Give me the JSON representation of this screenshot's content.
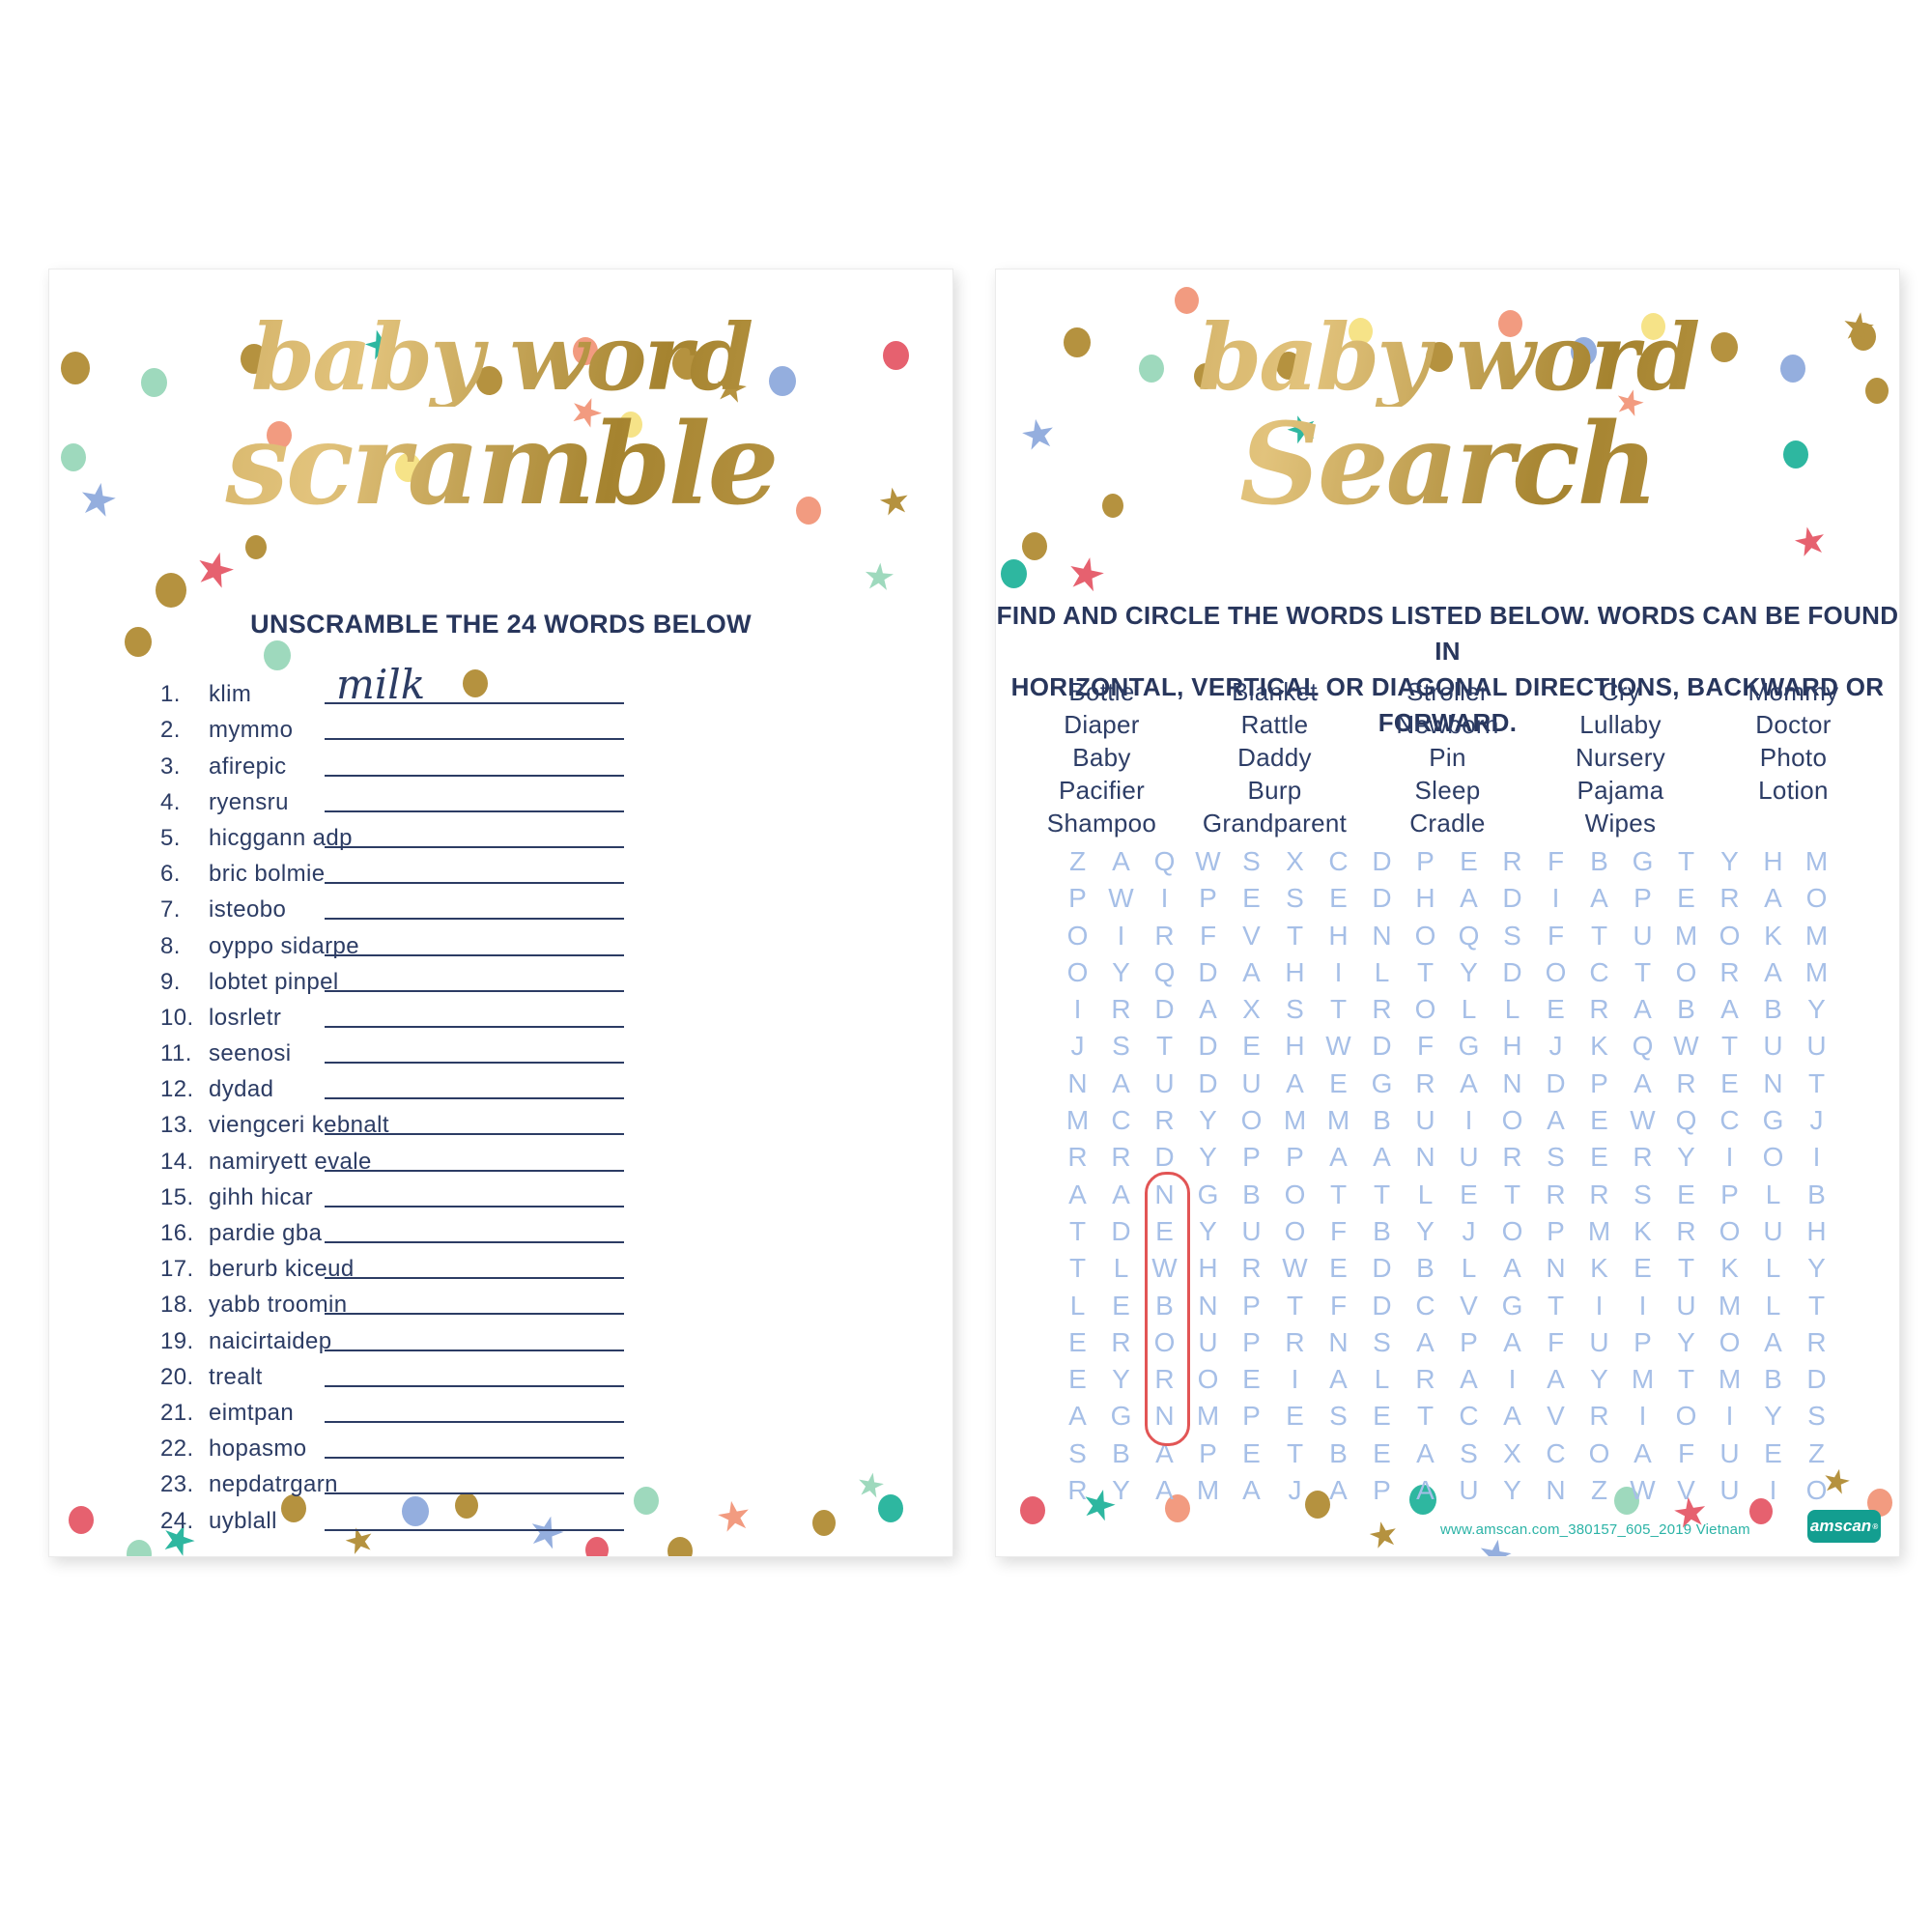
{
  "palette": {
    "gold": "#b5923f",
    "navy": "#2c3c64",
    "grid_blue": "#a6bfe7",
    "circle_red": "#e25555",
    "teal": "#2eb7a0",
    "mint": "#9ed9bd",
    "coral": "#f29b80",
    "rose": "#e6616f",
    "blue": "#94aede",
    "yellow": "#f6e388",
    "footer_teal": "#2bb3a6",
    "brand_bg": "#139e90"
  },
  "scramble_card": {
    "title_line1": "baby word",
    "title_line2": "scramble",
    "instruction": "UNSCRAMBLE THE 24 WORDS BELOW",
    "items": [
      {
        "num": "1.",
        "word": "klim",
        "answer": "milk"
      },
      {
        "num": "2.",
        "word": "mymmo",
        "answer": ""
      },
      {
        "num": "3.",
        "word": "afirepic",
        "answer": ""
      },
      {
        "num": "4.",
        "word": "ryensru",
        "answer": ""
      },
      {
        "num": "5.",
        "word": "hicggann adp",
        "answer": ""
      },
      {
        "num": "6.",
        "word": "bric bolmie",
        "answer": ""
      },
      {
        "num": "7.",
        "word": "isteobo",
        "answer": ""
      },
      {
        "num": "8.",
        "word": "oyppo sidarpe",
        "answer": ""
      },
      {
        "num": "9.",
        "word": "lobtet pinpel",
        "answer": ""
      },
      {
        "num": "10.",
        "word": "losrletr",
        "answer": ""
      },
      {
        "num": "11.",
        "word": "seenosi",
        "answer": ""
      },
      {
        "num": "12.",
        "word": "dydad",
        "answer": ""
      },
      {
        "num": "13.",
        "word": "viengceri kebnalt",
        "answer": ""
      },
      {
        "num": "14.",
        "word": "namiryett evale",
        "answer": ""
      },
      {
        "num": "15.",
        "word": "gihh hicar",
        "answer": ""
      },
      {
        "num": "16.",
        "word": "pardie gba",
        "answer": ""
      },
      {
        "num": "17.",
        "word": "berurb kiceud",
        "answer": ""
      },
      {
        "num": "18.",
        "word": "yabb troomin",
        "answer": ""
      },
      {
        "num": "19.",
        "word": "naicirtaidep",
        "answer": ""
      },
      {
        "num": "20.",
        "word": "trealt",
        "answer": ""
      },
      {
        "num": "21.",
        "word": "eimtpan",
        "answer": ""
      },
      {
        "num": "22.",
        "word": "hopasmo",
        "answer": ""
      },
      {
        "num": "23.",
        "word": "nepdatrgarn",
        "answer": ""
      },
      {
        "num": "24.",
        "word": "uyblall",
        "answer": ""
      }
    ]
  },
  "search_card": {
    "title_line1": "baby word",
    "title_line2": "Search",
    "instruction_line1": "FIND AND CIRCLE THE WORDS LISTED BELOW. WORDS CAN BE FOUND IN",
    "instruction_line2": "HORIZONTAL, VERTICAL OR DIAGONAL DIRECTIONS, BACKWARD OR FORWARD.",
    "word_columns": [
      [
        "Bottle",
        "Diaper",
        "Baby",
        "Pacifier",
        "Shampoo"
      ],
      [
        "Blanket",
        "Rattle",
        "Daddy",
        "Burp",
        "Grandparent"
      ],
      [
        "Stroller",
        "Newborn",
        "Pin",
        "Sleep",
        "Cradle"
      ],
      [
        "Cry",
        "Lullaby",
        "Nursery",
        "Pajama",
        "Wipes"
      ],
      [
        "Mommy",
        "Doctor",
        "Photo",
        "Lotion"
      ]
    ],
    "grid_rows": [
      "ZAQWSXCDPERFBGTYHM",
      "PWIPESEDHADIAPERAO",
      "OIRFVTHNOQSFTUMOKM",
      "OYQDAHILTYDOCTORAM",
      "IRDAXSTROLLERABABY",
      "JSTDEHWDFGHJKQWTUU",
      "NAUDUAEGRANDPARENT",
      "MCRYOMMBUIOAEWQCGJ",
      "RRDYPPAANURSERYIOI",
      "AANGBOTTLETRRSEPLB",
      "TDEYUOFBYJOPMKROUH",
      "TLWHRWEDBLANKETKLY",
      "LEBNPTFDCVGTIIUMLT",
      "EROUPRNSAPAFUPYOAR",
      "EYROEIALRAIAYMTMBD",
      "AGNMPESETCAVRIOIYS",
      "SBAPETBEASXCOAFUEZ",
      "RYAMAJAPAUYNZWVUIO"
    ],
    "circled_word": {
      "word": "NEWBORN",
      "direction": "vertical",
      "column": 3,
      "row_start": 10,
      "row_end": 16
    },
    "footer_url": "www.amscan.com_380157_605_2019 Vietnam",
    "brand_text": "amscan",
    "brand_reg_mark": "®"
  }
}
